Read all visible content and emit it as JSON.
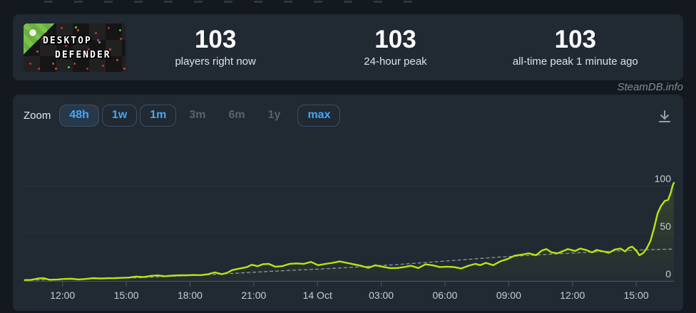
{
  "watermark": "SteamDB.info",
  "app": {
    "banner": {
      "line1": "DESKTOP",
      "line2": "DEFENDER"
    },
    "stats": [
      {
        "value": "103",
        "label": "players right now"
      },
      {
        "value": "103",
        "label": "24-hour peak"
      },
      {
        "value": "103",
        "label": "all-time peak 1 minute ago"
      }
    ]
  },
  "chart": {
    "zoom_label": "Zoom",
    "zoom_buttons": [
      {
        "label": "48h",
        "state": "active"
      },
      {
        "label": "1w",
        "state": "enabled"
      },
      {
        "label": "1m",
        "state": "enabled"
      },
      {
        "label": "3m",
        "state": "disabled"
      },
      {
        "label": "6m",
        "state": "disabled"
      },
      {
        "label": "1y",
        "state": "disabled"
      },
      {
        "label": "max",
        "state": "enabled"
      }
    ]
  },
  "chart_data": {
    "type": "line",
    "title": "",
    "xlabel": "",
    "ylabel": "",
    "ylim": [
      0,
      110
    ],
    "grid": "horizontal",
    "legend": "none",
    "y_ticks": [
      0,
      50,
      100
    ],
    "x_ticks": [
      {
        "label": "12:00",
        "pos": 0.06
      },
      {
        "label": "15:00",
        "pos": 0.158
      },
      {
        "label": "18:00",
        "pos": 0.256
      },
      {
        "label": "21:00",
        "pos": 0.354
      },
      {
        "label": "14 Oct",
        "pos": 0.452
      },
      {
        "label": "03:00",
        "pos": 0.55
      },
      {
        "label": "06:00",
        "pos": 0.648
      },
      {
        "label": "09:00",
        "pos": 0.746
      },
      {
        "label": "12:00",
        "pos": 0.844
      },
      {
        "label": "15:00",
        "pos": 0.942
      }
    ],
    "series": [
      {
        "name": "players",
        "color": "#b7e60f",
        "style": "solid",
        "points": [
          [
            0.002,
            1
          ],
          [
            0.012,
            1.2
          ],
          [
            0.022,
            2.6
          ],
          [
            0.031,
            3
          ],
          [
            0.04,
            1.3
          ],
          [
            0.052,
            1.6
          ],
          [
            0.063,
            2.2
          ],
          [
            0.074,
            2.4
          ],
          [
            0.085,
            1.6
          ],
          [
            0.096,
            2.2
          ],
          [
            0.107,
            3
          ],
          [
            0.118,
            2.6
          ],
          [
            0.13,
            2.9
          ],
          [
            0.14,
            3
          ],
          [
            0.151,
            3.3
          ],
          [
            0.162,
            3.6
          ],
          [
            0.173,
            4.6
          ],
          [
            0.184,
            4.1
          ],
          [
            0.195,
            5.3
          ],
          [
            0.206,
            5.9
          ],
          [
            0.217,
            5
          ],
          [
            0.228,
            5.6
          ],
          [
            0.24,
            6
          ],
          [
            0.25,
            6
          ],
          [
            0.261,
            6.3
          ],
          [
            0.272,
            6.1
          ],
          [
            0.283,
            7
          ],
          [
            0.294,
            9
          ],
          [
            0.305,
            7.2
          ],
          [
            0.313,
            8.6
          ],
          [
            0.321,
            11.5
          ],
          [
            0.332,
            13
          ],
          [
            0.343,
            14.5
          ],
          [
            0.351,
            17
          ],
          [
            0.36,
            15.5
          ],
          [
            0.368,
            17.6
          ],
          [
            0.377,
            18
          ],
          [
            0.387,
            15
          ],
          [
            0.398,
            15.6
          ],
          [
            0.409,
            18
          ],
          [
            0.42,
            18.4
          ],
          [
            0.431,
            18
          ],
          [
            0.442,
            20
          ],
          [
            0.453,
            16.6
          ],
          [
            0.464,
            17.9
          ],
          [
            0.475,
            19
          ],
          [
            0.486,
            20.6
          ],
          [
            0.497,
            19
          ],
          [
            0.508,
            17.5
          ],
          [
            0.519,
            16
          ],
          [
            0.53,
            13.8
          ],
          [
            0.541,
            16.5
          ],
          [
            0.552,
            15
          ],
          [
            0.563,
            13.6
          ],
          [
            0.574,
            13.6
          ],
          [
            0.585,
            14.6
          ],
          [
            0.596,
            16
          ],
          [
            0.607,
            13.6
          ],
          [
            0.618,
            17.5
          ],
          [
            0.629,
            16.5
          ],
          [
            0.64,
            14.6
          ],
          [
            0.651,
            15
          ],
          [
            0.662,
            14.6
          ],
          [
            0.673,
            13.1
          ],
          [
            0.684,
            16
          ],
          [
            0.695,
            18
          ],
          [
            0.702,
            16.6
          ],
          [
            0.711,
            19
          ],
          [
            0.722,
            16.6
          ],
          [
            0.733,
            20.6
          ],
          [
            0.744,
            23
          ],
          [
            0.755,
            26.6
          ],
          [
            0.766,
            27.6
          ],
          [
            0.777,
            29
          ],
          [
            0.788,
            27
          ],
          [
            0.797,
            32
          ],
          [
            0.804,
            33.5
          ],
          [
            0.812,
            30
          ],
          [
            0.821,
            29
          ],
          [
            0.83,
            31.5
          ],
          [
            0.837,
            33.5
          ],
          [
            0.848,
            31.5
          ],
          [
            0.856,
            34
          ],
          [
            0.865,
            32.5
          ],
          [
            0.874,
            30
          ],
          [
            0.881,
            32.5
          ],
          [
            0.892,
            31
          ],
          [
            0.9,
            29.5
          ],
          [
            0.909,
            33
          ],
          [
            0.918,
            34
          ],
          [
            0.925,
            31
          ],
          [
            0.931,
            35
          ],
          [
            0.936,
            36
          ],
          [
            0.942,
            32
          ],
          [
            0.947,
            27
          ],
          [
            0.953,
            29.5
          ],
          [
            0.958,
            34
          ],
          [
            0.964,
            42
          ],
          [
            0.969,
            54
          ],
          [
            0.975,
            71
          ],
          [
            0.98,
            78.5
          ],
          [
            0.986,
            84
          ],
          [
            0.991,
            85
          ],
          [
            0.995,
            92
          ],
          [
            0.998,
            100
          ],
          [
            1,
            103
          ]
        ]
      },
      {
        "name": "trend",
        "color": "#8f979e",
        "style": "dashed",
        "points": [
          [
            0.002,
            0.8
          ],
          [
            0.07,
            1.8
          ],
          [
            0.18,
            3.5
          ],
          [
            0.29,
            6.8
          ],
          [
            0.35,
            9
          ],
          [
            0.42,
            11.5
          ],
          [
            0.47,
            13
          ],
          [
            0.52,
            15
          ],
          [
            0.57,
            17
          ],
          [
            0.62,
            19.5
          ],
          [
            0.65,
            21
          ],
          [
            0.73,
            25
          ],
          [
            0.82,
            28.5
          ],
          [
            0.88,
            30.5
          ],
          [
            0.93,
            32
          ],
          [
            0.96,
            32.8
          ],
          [
            1,
            33.5
          ]
        ]
      }
    ]
  }
}
